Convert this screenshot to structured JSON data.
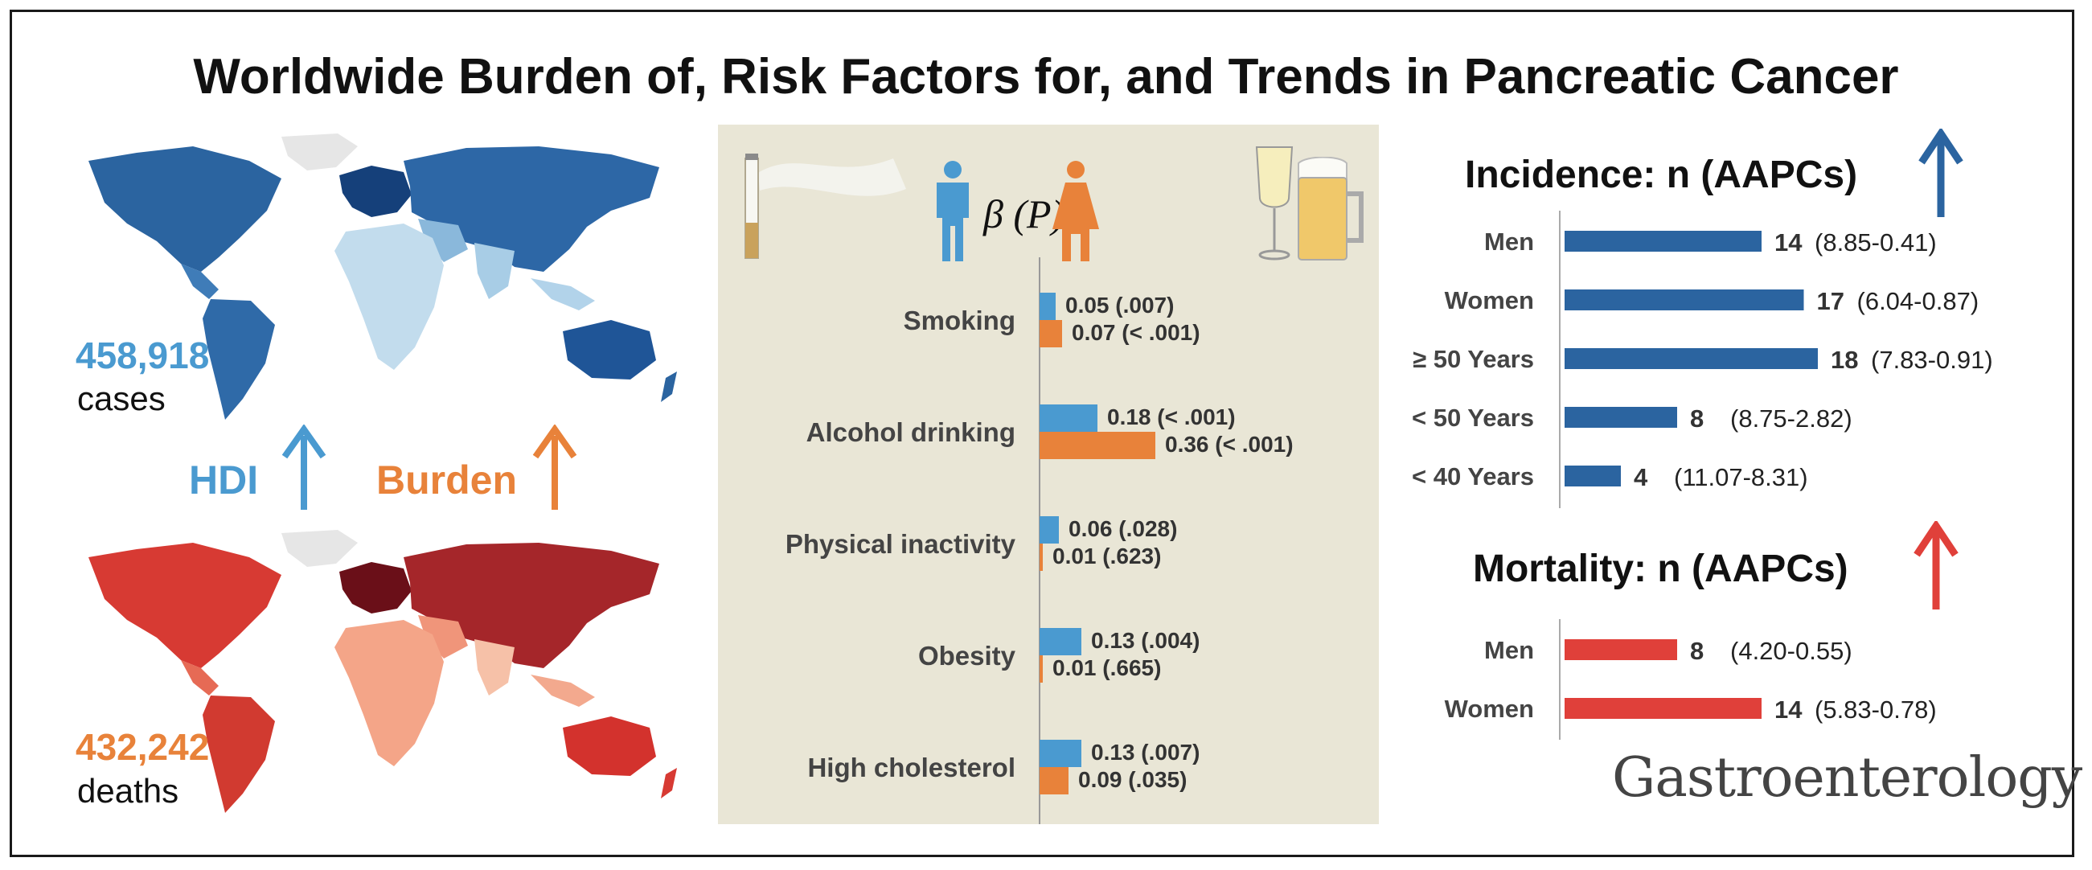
{
  "title": "Worldwide Burden of, Risk Factors for, and Trends in Pancreatic Cancer",
  "left": {
    "cases_value": "458,918",
    "cases_label": "cases",
    "deaths_value": "432,242",
    "deaths_label": "deaths",
    "hdi_label": "HDI",
    "burden_label": "Burden"
  },
  "colors": {
    "blue_dark": "#2b64a0",
    "blue_light": "#4a9ad0",
    "orange": "#e8823a",
    "red": "#e0403a",
    "panel_bg": "#e9e6d6"
  },
  "icons": [
    "cigarette-icon",
    "male-person-icon",
    "female-person-icon",
    "wine-glass-icon",
    "beer-mug-icon",
    "up-arrow-icon"
  ],
  "chart_data": [
    {
      "type": "bar",
      "orientation": "horizontal",
      "header": "β (P)",
      "categories": [
        "Smoking",
        "Alcohol drinking",
        "Physical inactivity",
        "Obesity",
        "High cholesterol"
      ],
      "series": [
        {
          "icon": "male-person-icon",
          "values": [
            0.05,
            0.18,
            0.06,
            0.13,
            0.13
          ],
          "labels": [
            "0.05 (.007)",
            "0.18 (< .001)",
            "0.06 (.028)",
            "0.13 (.004)",
            "0.13 (.007)"
          ],
          "color": "#4a9ad0"
        },
        {
          "icon": "female-person-icon",
          "values": [
            0.07,
            0.36,
            0.01,
            0.01,
            0.09
          ],
          "labels": [
            "0.07 (< .001)",
            "0.36 (< .001)",
            "0.01 (.623)",
            "0.01 (.665)",
            "0.09 (.035)"
          ],
          "color": "#e8823a"
        }
      ]
    },
    {
      "type": "bar",
      "orientation": "horizontal",
      "title": "Incidence: n (AAPCs)",
      "categories": [
        "Men",
        "Women",
        "≥ 50 Years",
        "< 50 Years",
        "< 40 Years"
      ],
      "values": [
        14,
        17,
        18,
        8,
        4
      ],
      "ranges": [
        "(8.85-0.41)",
        "(6.04-0.87)",
        "(7.83-0.91)",
        "(8.75-2.82)",
        "(11.07-8.31)"
      ],
      "color": "#2b64a0"
    },
    {
      "type": "bar",
      "orientation": "horizontal",
      "title": "Mortality: n (AAPCs)",
      "categories": [
        "Men",
        "Women"
      ],
      "values": [
        8,
        14
      ],
      "ranges": [
        "(4.20-0.55)",
        "(5.83-0.78)"
      ],
      "color": "#e0403a"
    }
  ],
  "journal": "Gastroenterology"
}
